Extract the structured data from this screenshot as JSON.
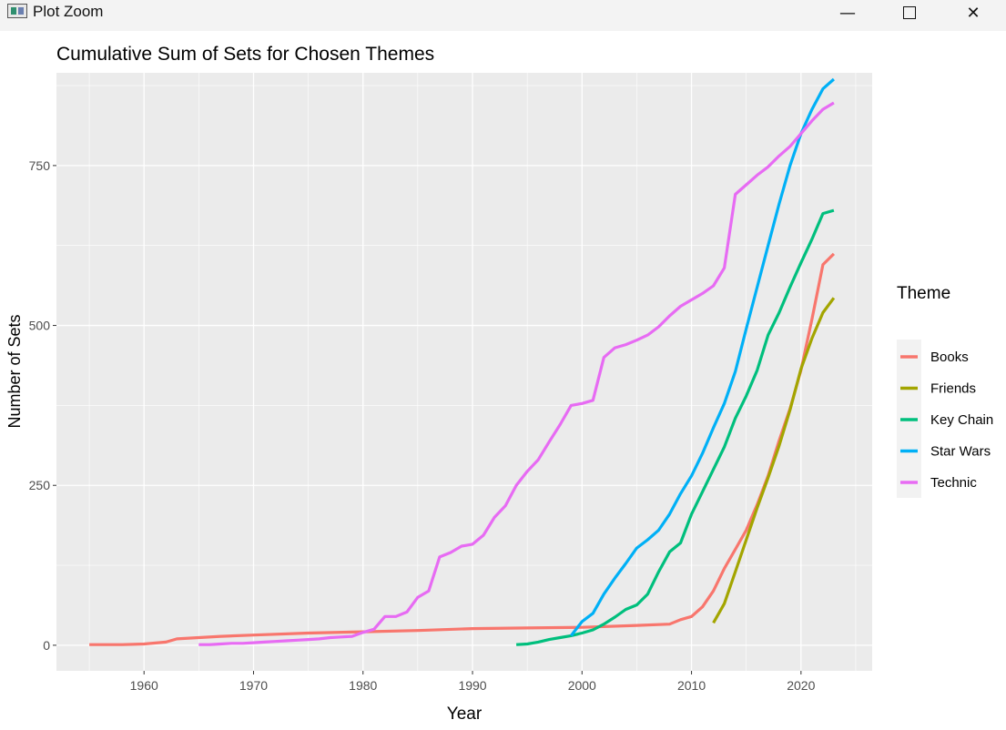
{
  "window": {
    "title": "Plot Zoom",
    "minimize_glyph": "—",
    "close_glyph": "✕",
    "icons": [
      "plot-zoom-app-icon",
      "minimize-icon",
      "maximize-icon",
      "close-icon"
    ]
  },
  "chart_data": {
    "type": "line",
    "title": "Cumulative Sum of Sets for Chosen Themes",
    "xlabel": "Year",
    "ylabel": "Number of Sets",
    "xlim": [
      1952,
      2026.5
    ],
    "ylim": [
      -40,
      895
    ],
    "xticks": [
      1960,
      1970,
      1980,
      1990,
      2000,
      2010,
      2020
    ],
    "yticks": [
      0,
      250,
      500,
      750
    ],
    "grid": true,
    "legend": {
      "title": "Theme",
      "position": "right"
    },
    "series": [
      {
        "name": "Books",
        "color": "#F8766D",
        "x": [
          1955,
          1958,
          1960,
          1962,
          1963,
          1965,
          1967,
          1970,
          1975,
          1980,
          1985,
          1990,
          1995,
          2000,
          2005,
          2008,
          2009,
          2010,
          2011,
          2012,
          2013,
          2014,
          2015,
          2016,
          2017,
          2018,
          2019,
          2020,
          2021,
          2022,
          2023
        ],
        "y": [
          1,
          1,
          2,
          5,
          10,
          12,
          14,
          16,
          19,
          21,
          23,
          26,
          27,
          28,
          31,
          33,
          40,
          45,
          60,
          85,
          120,
          150,
          180,
          220,
          265,
          320,
          370,
          430,
          510,
          595,
          612
        ]
      },
      {
        "name": "Friends",
        "color": "#A3A500",
        "x": [
          2012,
          2013,
          2014,
          2015,
          2016,
          2017,
          2018,
          2019,
          2020,
          2021,
          2022,
          2023
        ],
        "y": [
          35,
          65,
          115,
          165,
          215,
          262,
          312,
          368,
          432,
          480,
          520,
          543
        ]
      },
      {
        "name": "Key Chain",
        "color": "#00BF7D",
        "x": [
          1994,
          1995,
          1996,
          1997,
          1998,
          1999,
          2000,
          2001,
          2002,
          2003,
          2004,
          2005,
          2006,
          2007,
          2008,
          2009,
          2010,
          2011,
          2012,
          2013,
          2014,
          2015,
          2016,
          2017,
          2018,
          2019,
          2020,
          2021,
          2022,
          2023
        ],
        "y": [
          1,
          2,
          5,
          9,
          12,
          15,
          19,
          24,
          33,
          44,
          56,
          63,
          80,
          115,
          146,
          160,
          205,
          240,
          275,
          310,
          355,
          390,
          430,
          485,
          520,
          560,
          598,
          635,
          675,
          680
        ]
      },
      {
        "name": "Star Wars",
        "color": "#00B0F6",
        "x": [
          1999,
          2000,
          2001,
          2002,
          2003,
          2004,
          2005,
          2006,
          2007,
          2008,
          2009,
          2010,
          2011,
          2012,
          2013,
          2014,
          2015,
          2016,
          2017,
          2018,
          2019,
          2020,
          2021,
          2022,
          2023
        ],
        "y": [
          15,
          37,
          50,
          80,
          105,
          128,
          152,
          165,
          180,
          205,
          237,
          265,
          300,
          340,
          378,
          428,
          495,
          560,
          625,
          690,
          750,
          800,
          838,
          870,
          885
        ]
      },
      {
        "name": "Technic",
        "color": "#E76BF3",
        "x": [
          1965,
          1966,
          1967,
          1968,
          1969,
          1970,
          1971,
          1972,
          1973,
          1974,
          1975,
          1976,
          1977,
          1978,
          1979,
          1980,
          1981,
          1982,
          1983,
          1984,
          1985,
          1986,
          1987,
          1988,
          1989,
          1990,
          1991,
          1992,
          1993,
          1994,
          1995,
          1996,
          1997,
          1998,
          1999,
          2000,
          2001,
          2002,
          2003,
          2004,
          2005,
          2006,
          2007,
          2008,
          2009,
          2010,
          2011,
          2012,
          2013,
          2014,
          2015,
          2016,
          2017,
          2018,
          2019,
          2020,
          2021,
          2022,
          2023
        ],
        "y": [
          1,
          1,
          2,
          3,
          3,
          4,
          5,
          6,
          7,
          8,
          9,
          10,
          12,
          13,
          14,
          20,
          25,
          45,
          45,
          52,
          75,
          85,
          138,
          145,
          155,
          158,
          172,
          200,
          218,
          250,
          272,
          290,
          318,
          345,
          375,
          378,
          383,
          450,
          465,
          470,
          477,
          485,
          498,
          515,
          530,
          540,
          550,
          562,
          590,
          705,
          720,
          735,
          748,
          765,
          780,
          800,
          820,
          838,
          848
        ]
      }
    ]
  }
}
